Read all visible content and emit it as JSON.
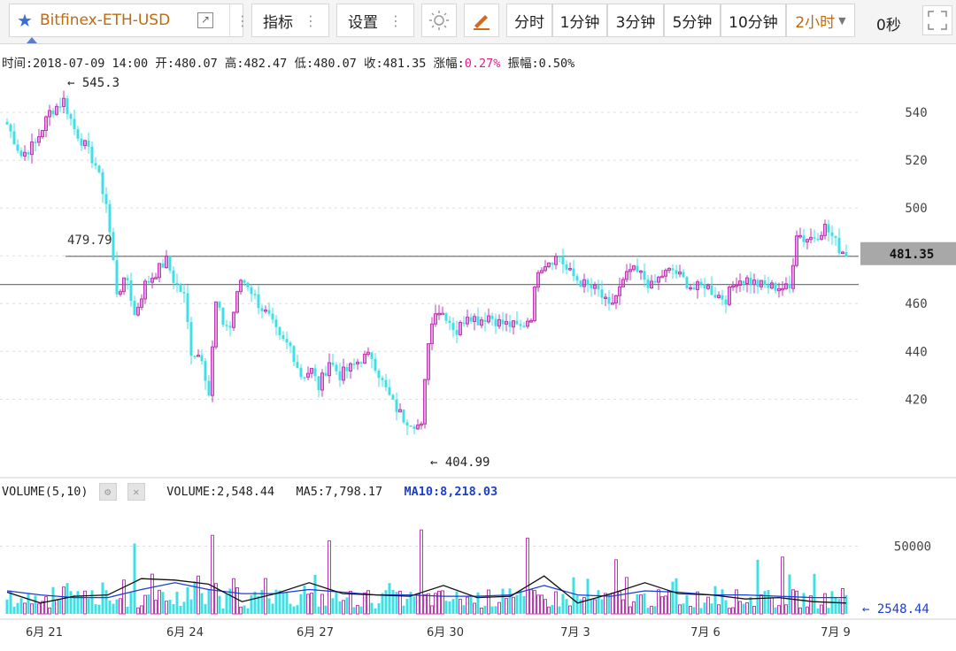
{
  "toolbar": {
    "symbol": "Bitfinex-ETH-USD",
    "indicators_label": "指标",
    "settings_label": "设置",
    "periods": [
      "分时",
      "1分钟",
      "3分钟",
      "5分钟",
      "10分钟",
      "2小时"
    ],
    "active_period": "2小时",
    "timer": "0秒"
  },
  "info": {
    "time_label": "时间:",
    "time": "2018-07-09 14:00",
    "open_label": "开:",
    "open": "480.07",
    "high_label": "高:",
    "high": "482.47",
    "low_label": "低:",
    "low": "480.07",
    "close_label": "收:",
    "close": "481.35",
    "change_label": "涨幅:",
    "change": "0.27%",
    "amplitude_label": "振幅:",
    "amplitude": "0.50%"
  },
  "volume_header": {
    "title": "VOLUME(5,10)",
    "volume_label": "VOLUME:",
    "volume": "2,548.44",
    "ma5_label": "MA5:",
    "ma5": "7,798.17",
    "ma10_label": "MA10:",
    "ma10": "8,218.03"
  },
  "colors": {
    "up": "#c03ab8",
    "down": "#3ee0e4",
    "ma5": "#111111",
    "ma10": "#1a3ed0",
    "grid": "#dddddd"
  },
  "chart_data": {
    "type": "candlestick",
    "price_axis": {
      "ticks": [
        420,
        440,
        460,
        480,
        500,
        520,
        540
      ],
      "min": 402,
      "max": 550
    },
    "volume_axis": {
      "ticks": [
        50000
      ],
      "max": 68000
    },
    "x_ticks": [
      "6月 21",
      "6月 24",
      "6月 27",
      "6月 30",
      "7月 3",
      "7月 6",
      "7月 9"
    ],
    "annotations": {
      "max_price": "545.3",
      "min_price": "404.99",
      "level_label": "479.79",
      "last_price": "481.35",
      "last_volume": "2548.44"
    },
    "horizontal_lines": [
      479.79,
      468
    ],
    "anchors": [
      [
        0,
        535
      ],
      [
        4,
        522
      ],
      [
        8,
        527
      ],
      [
        12,
        540
      ],
      [
        16,
        545
      ],
      [
        19,
        533
      ],
      [
        22,
        526
      ],
      [
        25,
        518
      ],
      [
        28,
        502
      ],
      [
        31,
        465
      ],
      [
        34,
        470
      ],
      [
        36,
        455
      ],
      [
        39,
        468
      ],
      [
        42,
        473
      ],
      [
        45,
        478
      ],
      [
        47,
        470
      ],
      [
        50,
        463
      ],
      [
        52,
        440
      ],
      [
        55,
        438
      ],
      [
        57,
        422
      ],
      [
        59,
        460
      ],
      [
        61,
        452
      ],
      [
        63,
        450
      ],
      [
        66,
        470
      ],
      [
        68,
        468
      ],
      [
        71,
        460
      ],
      [
        74,
        454
      ],
      [
        77,
        445
      ],
      [
        80,
        442
      ],
      [
        83,
        430
      ],
      [
        86,
        432
      ],
      [
        88,
        425
      ],
      [
        91,
        436
      ],
      [
        94,
        430
      ],
      [
        97,
        433
      ],
      [
        100,
        437
      ],
      [
        103,
        438
      ],
      [
        106,
        427
      ],
      [
        109,
        418
      ],
      [
        112,
        412
      ],
      [
        115,
        410
      ],
      [
        117,
        408
      ],
      [
        119,
        445
      ],
      [
        121,
        458
      ],
      [
        124,
        455
      ],
      [
        127,
        448
      ],
      [
        130,
        456
      ],
      [
        133,
        453
      ],
      [
        136,
        455
      ],
      [
        139,
        452
      ],
      [
        142,
        451
      ],
      [
        145,
        450
      ],
      [
        148,
        455
      ],
      [
        150,
        475
      ],
      [
        153,
        478
      ],
      [
        156,
        480
      ],
      [
        158,
        474
      ],
      [
        161,
        470
      ],
      [
        164,
        467
      ],
      [
        167,
        465
      ],
      [
        170,
        458
      ],
      [
        173,
        466
      ],
      [
        176,
        474
      ],
      [
        179,
        472
      ],
      [
        182,
        467
      ],
      [
        185,
        472
      ],
      [
        188,
        474
      ],
      [
        191,
        470
      ],
      [
        194,
        466
      ],
      [
        197,
        468
      ],
      [
        200,
        464
      ],
      [
        203,
        462
      ],
      [
        206,
        470
      ],
      [
        209,
        470
      ],
      [
        212,
        468
      ],
      [
        215,
        467
      ],
      [
        218,
        467
      ],
      [
        221,
        466
      ],
      [
        223,
        490
      ],
      [
        225,
        487
      ],
      [
        228,
        488
      ],
      [
        231,
        492
      ],
      [
        233,
        488
      ],
      [
        235,
        483
      ],
      [
        237,
        481
      ]
    ],
    "volume_ma5": [
      16000,
      8000,
      13000,
      14000,
      26000,
      25000,
      22000,
      9000,
      15000,
      23000,
      15000,
      14000,
      13000,
      21000,
      12000,
      13000,
      28000,
      8000,
      15000,
      23000,
      15000,
      14000,
      11000,
      12000,
      9000,
      8000
    ],
    "volume_ma10": [
      17000,
      14000,
      12000,
      12000,
      18000,
      23000,
      18000,
      15000,
      15000,
      18000,
      16000,
      14000,
      14000,
      13000,
      13000,
      14000,
      21000,
      14000,
      13000,
      17000,
      16000,
      14000,
      14000,
      13000,
      12000,
      12000
    ],
    "volume_spikes": [
      [
        36,
        52000
      ],
      [
        58,
        58000
      ],
      [
        64,
        26000
      ],
      [
        91,
        54000
      ],
      [
        117,
        62000
      ],
      [
        147,
        56000
      ],
      [
        172,
        40000
      ],
      [
        212,
        40000
      ],
      [
        219,
        42000
      ]
    ]
  }
}
